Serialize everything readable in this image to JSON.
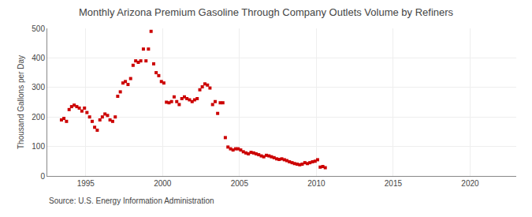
{
  "chart_data": {
    "type": "scatter",
    "title": "Monthly Arizona Premium Gasoline Through Company Outlets Volume by Refiners",
    "ylabel": "Thousand Gallons per Day",
    "annotations": [
      "Source: U.S. Energy Information Administration"
    ],
    "color": "#CC0000",
    "marker": "square",
    "grid": true,
    "xlim": [
      1992.5,
      2023.0
    ],
    "ylim": [
      0,
      500
    ],
    "xticks": [
      1995,
      2000,
      2005,
      2010,
      2015,
      2020
    ],
    "yticks": [
      0,
      100,
      200,
      300,
      400,
      500
    ],
    "x": [
      1993.42,
      1993.58,
      1993.75,
      1993.92,
      1994.08,
      1994.25,
      1994.42,
      1994.58,
      1994.75,
      1994.92,
      1995.08,
      1995.25,
      1995.42,
      1995.58,
      1995.75,
      1995.92,
      1996.08,
      1996.25,
      1996.42,
      1996.58,
      1996.75,
      1996.92,
      1997.08,
      1997.25,
      1997.42,
      1997.58,
      1997.75,
      1997.92,
      1998.08,
      1998.25,
      1998.42,
      1998.58,
      1998.75,
      1998.92,
      1999.08,
      1999.25,
      1999.42,
      1999.58,
      1999.75,
      1999.92,
      2000.08,
      2000.25,
      2000.42,
      2000.58,
      2000.75,
      2000.92,
      2001.08,
      2001.25,
      2001.42,
      2001.58,
      2001.75,
      2001.92,
      2002.08,
      2002.25,
      2002.42,
      2002.58,
      2002.75,
      2002.92,
      2003.08,
      2003.25,
      2003.42,
      2003.58,
      2003.75,
      2003.92,
      2004.08,
      2004.25,
      2004.42,
      2004.58,
      2004.75,
      2004.92,
      2005.08,
      2005.25,
      2005.42,
      2005.58,
      2005.75,
      2005.92,
      2006.08,
      2006.25,
      2006.42,
      2006.58,
      2006.75,
      2006.92,
      2007.08,
      2007.25,
      2007.42,
      2007.58,
      2007.75,
      2007.92,
      2008.08,
      2008.25,
      2008.42,
      2008.58,
      2008.75,
      2008.92,
      2009.08,
      2009.25,
      2009.42,
      2009.58,
      2009.75,
      2009.92,
      2010.08,
      2010.25,
      2010.42,
      2010.58
    ],
    "values": [
      190,
      195,
      185,
      225,
      235,
      240,
      235,
      230,
      220,
      230,
      215,
      200,
      185,
      165,
      155,
      190,
      200,
      210,
      205,
      190,
      185,
      200,
      270,
      285,
      315,
      320,
      310,
      330,
      375,
      390,
      385,
      390,
      430,
      390,
      430,
      490,
      380,
      350,
      340,
      320,
      315,
      250,
      248,
      252,
      268,
      252,
      242,
      262,
      268,
      262,
      258,
      252,
      258,
      262,
      292,
      302,
      312,
      308,
      298,
      242,
      252,
      212,
      248,
      248,
      130,
      98,
      92,
      88,
      92,
      92,
      88,
      82,
      78,
      75,
      80,
      78,
      75,
      72,
      68,
      65,
      70,
      68,
      65,
      62,
      58,
      56,
      58,
      55,
      52,
      48,
      45,
      42,
      40,
      38,
      40,
      45,
      42,
      45,
      48,
      50,
      55,
      30,
      32,
      28
    ]
  }
}
